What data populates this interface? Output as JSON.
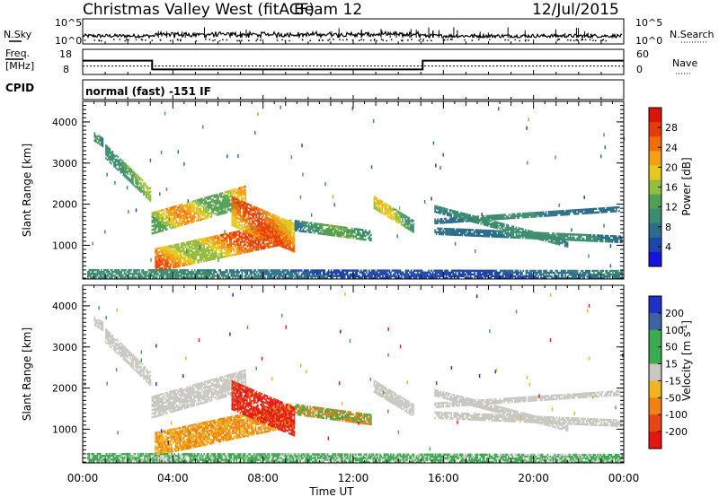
{
  "header": {
    "title": "Christmas Valley West (fitACF)",
    "beam": "Beam 12",
    "date": "12/Jul/2015"
  },
  "panels": {
    "noise": {
      "left_label": "N.Sky",
      "right_label": "N.Search",
      "left_ticks": [
        "10^5",
        "10^0"
      ],
      "right_ticks": [
        "10^5",
        "10^0"
      ]
    },
    "freq": {
      "left_label_1": "Freq.",
      "left_label_2": "[MHz]",
      "right_label": "Nave",
      "left_ticks": [
        "18",
        "8"
      ],
      "right_ticks": [
        "60",
        "0"
      ]
    },
    "cpid": {
      "label": "CPID",
      "text": "normal (fast) -151 IF"
    }
  },
  "chart_data": [
    {
      "type": "line",
      "title": "",
      "ylabel": "Freq. [MHz]",
      "series": [
        {
          "name": "Freq.",
          "x": [
            "00:00",
            "03:05",
            "03:05",
            "15:05",
            "15:05",
            "24:00"
          ],
          "values": [
            13.5,
            13.5,
            10.0,
            10.0,
            13.5,
            13.5
          ]
        },
        {
          "name": "Nave",
          "x": [
            "00:00",
            "24:00"
          ],
          "values": [
            20,
            20
          ]
        }
      ]
    },
    {
      "type": "heatmap",
      "title": "Power [dB]",
      "xlabel": "Time UT",
      "ylabel": "Slant Range [km]",
      "xlim": [
        "00:00",
        "24:00"
      ],
      "ylim": [
        180,
        4500
      ],
      "x_ticks": [
        "00:00",
        "04:00",
        "08:00",
        "12:00",
        "16:00",
        "20:00",
        "00:00"
      ],
      "y_ticks": [
        1000,
        2000,
        3000,
        4000
      ],
      "colorbar": {
        "label": "Power [dB]",
        "ticks": [
          4,
          8,
          12,
          16,
          20,
          24,
          28
        ],
        "range": [
          0,
          32
        ]
      }
    },
    {
      "type": "heatmap",
      "title": "Velocity [m s^-1]",
      "xlabel": "Time UT",
      "ylabel": "Slant Range [km]",
      "xlim": [
        "00:00",
        "24:00"
      ],
      "ylim": [
        180,
        4500
      ],
      "x_ticks": [
        "00:00",
        "04:00",
        "08:00",
        "12:00",
        "16:00",
        "20:00",
        "00:00"
      ],
      "y_ticks": [
        1000,
        2000,
        3000,
        4000
      ],
      "colorbar": {
        "label": "Velocity [m s^-1]",
        "ticks": [
          200,
          100,
          50,
          15,
          -15,
          -50,
          -100,
          -200
        ]
      }
    }
  ],
  "axes": {
    "x_ticks": [
      "00:00",
      "04:00",
      "08:00",
      "12:00",
      "16:00",
      "20:00",
      "00:00"
    ],
    "xlabel": "Time UT",
    "ylabel": "Slant Range [km]",
    "y_ticks": [
      "1000",
      "2000",
      "3000",
      "4000"
    ]
  },
  "colorbars": {
    "power": {
      "label": "Power [dB]",
      "ticks": [
        "28",
        "24",
        "20",
        "16",
        "12",
        "8",
        "4"
      ]
    },
    "velocity": {
      "label": "Velocity [m s",
      "label_sup": "-1",
      "label_end": "]",
      "ticks": [
        "200",
        "100",
        "50",
        "15",
        "-15",
        "-50",
        "-100",
        "-200"
      ]
    }
  },
  "colors": {
    "power": [
      "#1414dc",
      "#1e46aa",
      "#2b6e8a",
      "#3c8c6e",
      "#52a052",
      "#96be3c",
      "#e6c81e",
      "#f5a014",
      "#f06e0a",
      "#e63c0a",
      "#dc140a"
    ],
    "velocity": {
      "pos_high": "#1e32c8",
      "pos_mid": "#3c64a0",
      "pos_low": "#3caa50",
      "ground": "#c8c8c0",
      "neg_low": "#f0b41e",
      "neg_mid": "#f08214",
      "neg_high": "#e64614",
      "neg_max": "#e61414"
    }
  }
}
